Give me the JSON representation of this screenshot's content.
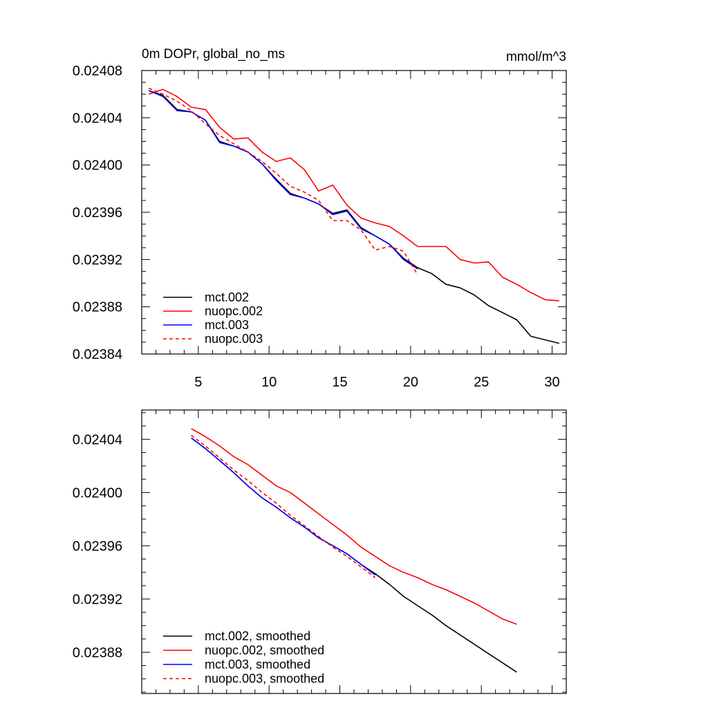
{
  "chart_data": [
    {
      "type": "line",
      "title_left": "0m DOPr, global_no_ms",
      "title_right": "mmol/m^3",
      "xlabel": "",
      "ylabel": "",
      "xlim": [
        1,
        31
      ],
      "ylim": [
        0.02384,
        0.02408
      ],
      "xticks": [
        5,
        10,
        15,
        20,
        25,
        30
      ],
      "xtick_labels": [
        "5",
        "10",
        "15",
        "20",
        "25",
        "30"
      ],
      "yticks": [
        0.02384,
        0.02388,
        0.02392,
        0.02396,
        0.024,
        0.02404,
        0.02408
      ],
      "ytick_labels": [
        "0.02384",
        "0.02388",
        "0.02392",
        "0.02396",
        "0.02400",
        "0.02404",
        "0.02408"
      ],
      "legend_position": "bottom-left",
      "series": [
        {
          "name": "mct.002",
          "color": "#000000",
          "dash": "solid",
          "x": [
            1.5,
            2.5,
            3.5,
            4.5,
            5.5,
            6.5,
            7.5,
            8.5,
            9.5,
            10.5,
            11.5,
            12.5,
            13.5,
            14.5,
            15.5,
            16.5,
            17.5,
            18.5,
            19.5,
            20.5,
            21.5,
            22.5,
            23.5,
            24.5,
            25.5,
            26.5,
            27.5,
            28.5,
            29.5,
            30.5
          ],
          "y": [
            0.024063,
            0.024059,
            0.024047,
            0.024045,
            0.024038,
            0.02402,
            0.024016,
            0.024011,
            0.024001,
            0.023988,
            0.023976,
            0.023972,
            0.023967,
            0.023959,
            0.023962,
            0.023947,
            0.02394,
            0.023933,
            0.023921,
            0.023913,
            0.023908,
            0.023899,
            0.023896,
            0.02389,
            0.023881,
            0.023875,
            0.023869,
            0.023855,
            0.023852,
            0.023849
          ]
        },
        {
          "name": "nuopc.002",
          "color": "#ff0000",
          "dash": "solid",
          "x": [
            1.5,
            2.5,
            3.5,
            4.5,
            5.5,
            6.5,
            7.5,
            8.5,
            9.5,
            10.5,
            11.5,
            12.5,
            13.5,
            14.5,
            15.5,
            16.5,
            17.5,
            18.5,
            19.5,
            20.5,
            21.5,
            22.5,
            23.5,
            24.5,
            25.5,
            26.5,
            27.5,
            28.5,
            29.5,
            30.5
          ],
          "y": [
            0.02406,
            0.024064,
            0.024058,
            0.024049,
            0.024047,
            0.024032,
            0.024022,
            0.024023,
            0.024011,
            0.024003,
            0.024006,
            0.023996,
            0.023978,
            0.023983,
            0.023966,
            0.023955,
            0.023951,
            0.023948,
            0.02394,
            0.023931,
            0.023931,
            0.023931,
            0.02392,
            0.023917,
            0.023918,
            0.023905,
            0.023899,
            0.023892,
            0.023886,
            0.023885
          ]
        },
        {
          "name": "mct.003",
          "color": "#0000ff",
          "dash": "solid",
          "x": [
            1.5,
            2.5,
            3.5,
            4.5,
            5.5,
            6.5,
            7.5,
            8.5,
            9.5,
            10.5,
            11.5,
            12.5,
            13.5,
            14.5,
            15.5,
            16.5,
            17.5,
            18.5,
            19.5,
            20.5
          ],
          "y": [
            0.024063,
            0.024058,
            0.024046,
            0.024045,
            0.024038,
            0.024019,
            0.024016,
            0.024011,
            0.024001,
            0.023987,
            0.023975,
            0.023972,
            0.023967,
            0.023958,
            0.023961,
            0.023946,
            0.02394,
            0.023933,
            0.02392,
            0.023912
          ]
        },
        {
          "name": "nuopc.003",
          "color": "#ff0000",
          "dash": "dashed",
          "x": [
            1.5,
            2.5,
            3.5,
            4.5,
            5.5,
            6.5,
            7.5,
            8.5,
            9.5,
            10.5,
            11.5,
            12.5,
            13.5,
            14.5,
            15.5,
            16.5,
            17.5,
            18.5,
            19.5,
            20.5
          ],
          "y": [
            0.024065,
            0.02406,
            0.024054,
            0.024046,
            0.024035,
            0.024025,
            0.024018,
            0.024011,
            0.024003,
            0.023993,
            0.023982,
            0.023977,
            0.02397,
            0.023953,
            0.023953,
            0.023945,
            0.023928,
            0.023931,
            0.023927,
            0.023907
          ]
        }
      ]
    },
    {
      "type": "line",
      "title_left": "",
      "title_right": "",
      "xlabel": "",
      "ylabel": "",
      "xlim": [
        1,
        31
      ],
      "ylim": [
        0.023849,
        0.024062
      ],
      "xticks": [
        5,
        10,
        15,
        20,
        25,
        30
      ],
      "xtick_labels": [],
      "yticks": [
        0.02388,
        0.02392,
        0.02396,
        0.024,
        0.02404
      ],
      "ytick_labels": [
        "0.02388",
        "0.02392",
        "0.02396",
        "0.02400",
        "0.02404"
      ],
      "legend_position": "bottom-left",
      "series": [
        {
          "name": "mct.002, smoothed",
          "color": "#000000",
          "dash": "solid",
          "x": [
            4.5,
            5.5,
            6.5,
            7.5,
            8.5,
            9.5,
            10.5,
            11.5,
            12.5,
            13.5,
            14.5,
            15.5,
            16.5,
            17.5,
            18.5,
            19.5,
            20.5,
            21.5,
            22.5,
            23.5,
            24.5,
            25.5,
            26.5,
            27.5
          ],
          "y": [
            0.024041,
            0.024033,
            0.024024,
            0.024015,
            0.024005,
            0.023996,
            0.023989,
            0.023981,
            0.023974,
            0.023966,
            0.02396,
            0.023954,
            0.023946,
            0.023939,
            0.023931,
            0.023922,
            0.023915,
            0.023908,
            0.0239,
            0.023893,
            0.023886,
            0.023879,
            0.023872,
            0.023865
          ]
        },
        {
          "name": "nuopc.002, smoothed",
          "color": "#ff0000",
          "dash": "solid",
          "x": [
            4.5,
            5.5,
            6.5,
            7.5,
            8.5,
            9.5,
            10.5,
            11.5,
            12.5,
            13.5,
            14.5,
            15.5,
            16.5,
            17.5,
            18.5,
            19.5,
            20.5,
            21.5,
            22.5,
            23.5,
            24.5,
            25.5,
            26.5,
            27.5
          ],
          "y": [
            0.024048,
            0.024042,
            0.024035,
            0.024027,
            0.024021,
            0.024013,
            0.024005,
            0.024,
            0.023992,
            0.023984,
            0.023976,
            0.023968,
            0.023959,
            0.023952,
            0.023945,
            0.02394,
            0.023936,
            0.023931,
            0.023927,
            0.023922,
            0.023917,
            0.023911,
            0.023905,
            0.023901
          ]
        },
        {
          "name": "mct.003, smoothed",
          "color": "#0000ff",
          "dash": "solid",
          "x": [
            4.5,
            5.5,
            6.5,
            7.5,
            8.5,
            9.5,
            10.5,
            11.5,
            12.5,
            13.5,
            14.5,
            15.5,
            16.5,
            17.5
          ],
          "y": [
            0.024041,
            0.024033,
            0.024024,
            0.024015,
            0.024005,
            0.023996,
            0.023989,
            0.023981,
            0.023974,
            0.023966,
            0.02396,
            0.023954,
            0.023946,
            0.023938
          ]
        },
        {
          "name": "nuopc.003, smoothed",
          "color": "#ff0000",
          "dash": "dashed",
          "x": [
            4.5,
            5.5,
            6.5,
            7.5,
            8.5,
            9.5,
            10.5,
            11.5,
            12.5,
            13.5,
            14.5,
            15.5,
            16.5,
            17.5
          ],
          "y": [
            0.024043,
            0.024035,
            0.024026,
            0.024017,
            0.024009,
            0.024,
            0.023992,
            0.023983,
            0.023975,
            0.023967,
            0.023959,
            0.023952,
            0.023944,
            0.023936
          ]
        }
      ]
    }
  ]
}
